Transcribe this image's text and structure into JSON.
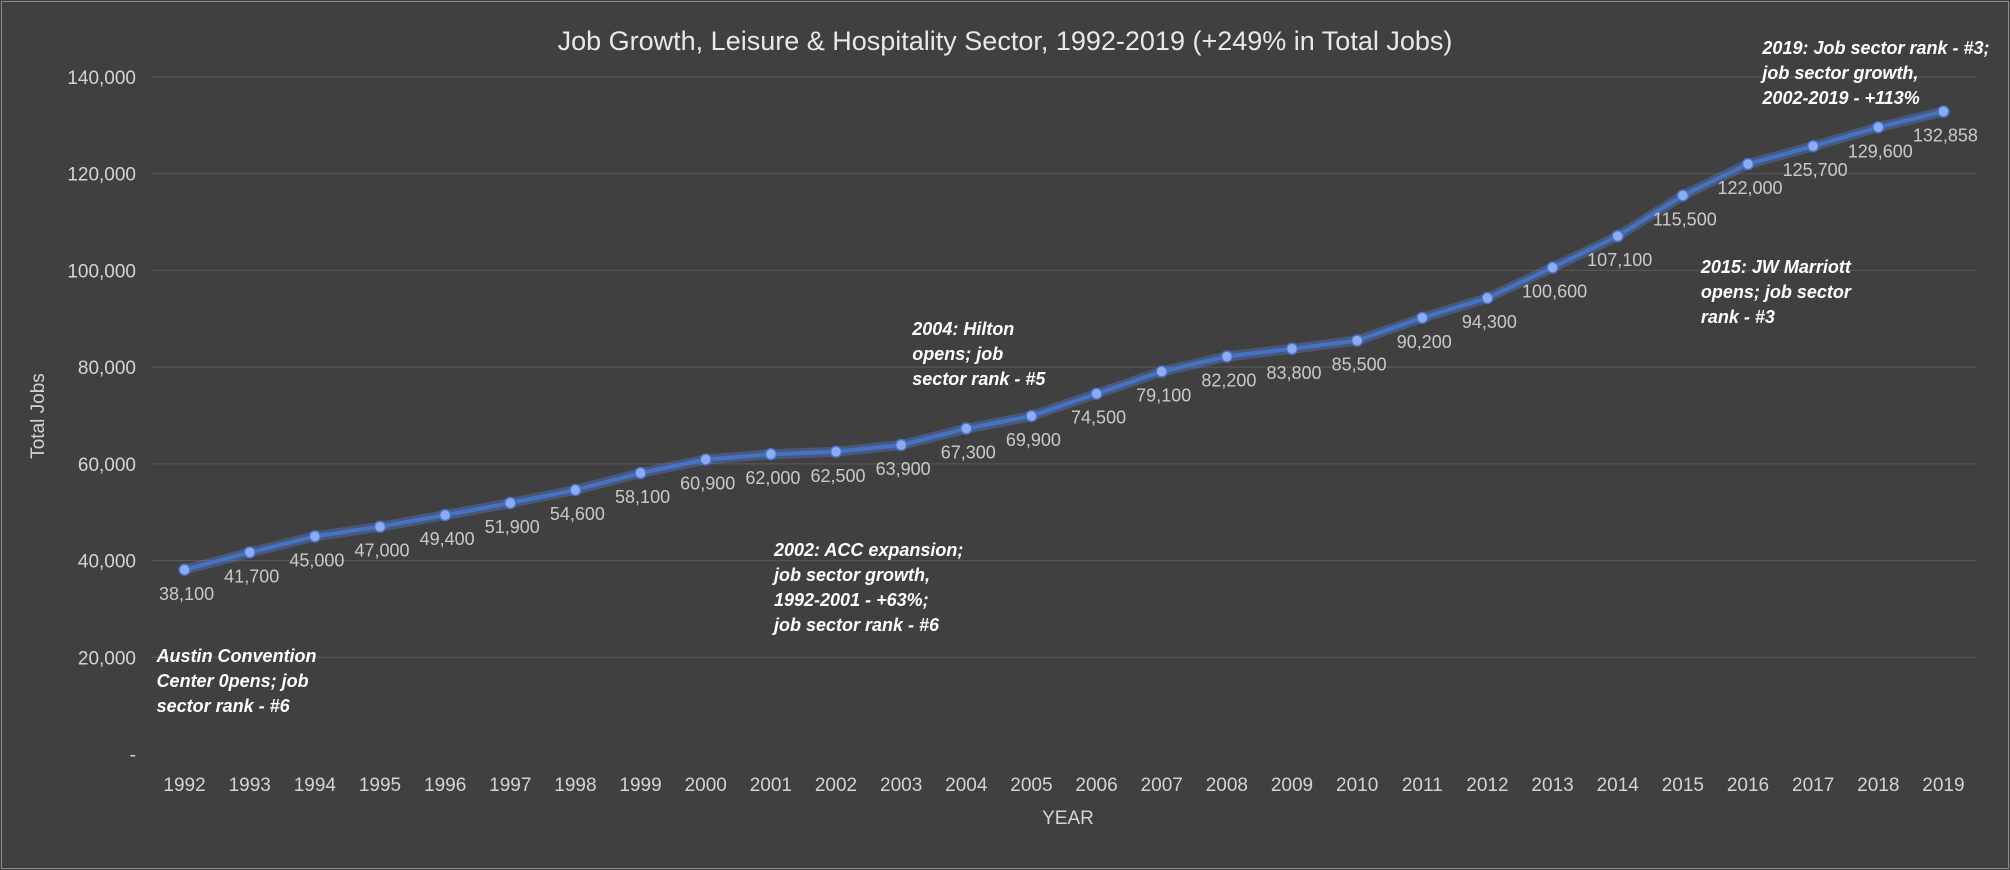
{
  "chart_data": {
    "type": "line",
    "title": "Job Growth, Leisure & Hospitality Sector, 1992-2019 (+249% in Total Jobs)",
    "xlabel": "YEAR",
    "ylabel": "Total Jobs",
    "ylim": [
      0,
      140000
    ],
    "yticks": [
      "-",
      "20,000",
      "40,000",
      "60,000",
      "80,000",
      "100,000",
      "120,000",
      "140,000"
    ],
    "yticks_values": [
      0,
      20000,
      40000,
      60000,
      80000,
      100000,
      120000,
      140000
    ],
    "grid": true,
    "x": [
      "1992",
      "1993",
      "1994",
      "1995",
      "1996",
      "1997",
      "1998",
      "1999",
      "2000",
      "2001",
      "2002",
      "2003",
      "2004",
      "2005",
      "2006",
      "2007",
      "2008",
      "2009",
      "2010",
      "2011",
      "2012",
      "2013",
      "2014",
      "2015",
      "2016",
      "2017",
      "2018",
      "2019"
    ],
    "series": [
      {
        "values": [
          38100,
          41700,
          45000,
          47000,
          49400,
          51900,
          54600,
          58100,
          60900,
          62000,
          62500,
          63900,
          67300,
          69900,
          74500,
          79100,
          82200,
          83800,
          85500,
          90200,
          94300,
          100600,
          107100,
          115500,
          122000,
          125700,
          129600,
          132858
        ],
        "labels": [
          "38,100",
          "41,700",
          "45,000",
          "47,000",
          "49,400",
          "51,900",
          "54,600",
          "58,100",
          "60,900",
          "62,000",
          "62,500",
          "63,900",
          "67,300",
          "69,900",
          "74,500",
          "79,100",
          "82,200",
          "83,800",
          "85,500",
          "90,200",
          "94,300",
          "100,600",
          "107,100",
          "115,500",
          "122,000",
          "125,700",
          "129,600",
          "132,858"
        ],
        "color": "#4472c4"
      }
    ],
    "annotations": [
      {
        "year": "1992",
        "lines": [
          "Austin Convention",
          "Center 0pens; job",
          "sector rank - #6"
        ]
      },
      {
        "year": "2002",
        "lines": [
          "2002: ACC expansion;",
          "job sector growth,",
          "1992-2001 - +63%;",
          "job sector rank - #6"
        ]
      },
      {
        "year": "2004",
        "lines": [
          "2004: Hilton",
          "opens; job",
          "sector rank - #5"
        ]
      },
      {
        "year": "2015",
        "lines": [
          "2015: JW Marriott",
          "opens; job sector",
          "rank - #3"
        ]
      },
      {
        "year": "2019",
        "lines": [
          "2019: Job sector rank - #3;",
          "job sector growth,",
          "2002-2019 - +113%"
        ]
      }
    ]
  }
}
